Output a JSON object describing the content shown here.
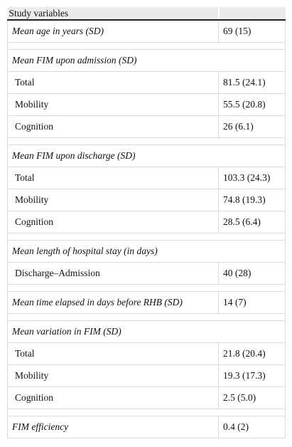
{
  "header": {
    "title": "Study variables"
  },
  "groups": [
    {
      "label": "Mean age in years (SD)",
      "value": "69 (15)"
    },
    {
      "label": "Mean FIM upon admission (SD)",
      "rows": [
        {
          "label": "Total",
          "value": "81.5 (24.1)"
        },
        {
          "label": "Mobility",
          "value": "55.5 (20.8)"
        },
        {
          "label": "Cognition",
          "value": "26 (6.1)"
        }
      ]
    },
    {
      "label": "Mean FIM upon discharge (SD)",
      "rows": [
        {
          "label": "Total",
          "value": "103.3 (24.3)"
        },
        {
          "label": "Mobility",
          "value": "74.8 (19.3)"
        },
        {
          "label": "Cognition",
          "value": "28.5 (6.4)"
        }
      ]
    },
    {
      "label": "Mean length of hospital stay (in days)",
      "rows": [
        {
          "label": "Discharge–Admission",
          "value": "40 (28)"
        }
      ]
    },
    {
      "label": "Mean time elapsed in days before RHB (SD)",
      "value": "14 (7)"
    },
    {
      "label": "Mean variation in FIM (SD)",
      "rows": [
        {
          "label": "Total",
          "value": "21.8 (20.4)"
        },
        {
          "label": "Mobility",
          "value": "19.3 (17.3)"
        },
        {
          "label": "Cognition",
          "value": "2.5 (5.0)"
        }
      ]
    },
    {
      "label": "FIM efficiency",
      "value": "0.4 (2)"
    }
  ]
}
